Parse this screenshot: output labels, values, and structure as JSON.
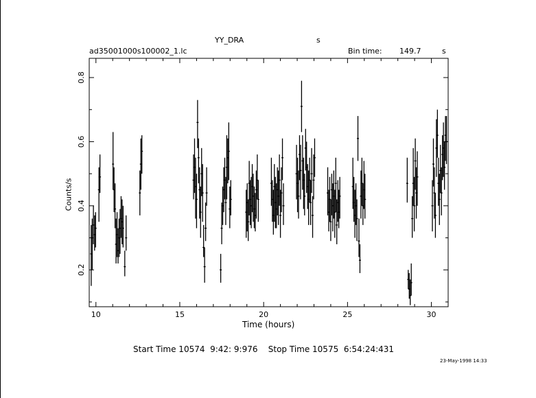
{
  "chart_data": {
    "type": "scatter",
    "title": "YY_DRA",
    "title_suffix": "s",
    "file_label": "ad35001000s100002_1.lc",
    "bin_time_label": "Bin time:",
    "bin_time_value": "149.7",
    "bin_time_unit": "s",
    "xlabel": "Time (hours)",
    "ylabel": "Counts/s",
    "xlim": [
      9.6,
      31.0
    ],
    "ylim": [
      0.085,
      0.86
    ],
    "x_ticks": [
      "10",
      "15",
      "20",
      "25",
      "30"
    ],
    "y_ticks": [
      "0.2",
      "0.4",
      "0.6",
      "0.8"
    ],
    "footer": "Start Time 10574  9:42: 9:976    Stop Time 10575  6:54:24:431",
    "timestamp": "23-May-1998 14:33",
    "series": [
      {
        "error_bars": true,
        "points": [
          {
            "x": 9.72,
            "y": 0.25,
            "lo": 0.15,
            "hi": 0.34
          },
          {
            "x": 9.78,
            "y": 0.3,
            "lo": 0.2,
            "hi": 0.36
          },
          {
            "x": 9.85,
            "y": 0.34,
            "lo": 0.28,
            "hi": 0.4
          },
          {
            "x": 9.92,
            "y": 0.31,
            "lo": 0.26,
            "hi": 0.37
          },
          {
            "x": 9.98,
            "y": 0.33,
            "lo": 0.27,
            "hi": 0.38
          },
          {
            "x": 10.18,
            "y": 0.45,
            "lo": 0.35,
            "hi": 0.52
          },
          {
            "x": 10.24,
            "y": 0.49,
            "lo": 0.44,
            "hi": 0.56
          },
          {
            "x": 11.02,
            "y": 0.53,
            "lo": 0.45,
            "hi": 0.63
          },
          {
            "x": 11.08,
            "y": 0.45,
            "lo": 0.38,
            "hi": 0.52
          },
          {
            "x": 11.14,
            "y": 0.39,
            "lo": 0.33,
            "hi": 0.47
          },
          {
            "x": 11.2,
            "y": 0.28,
            "lo": 0.22,
            "hi": 0.36
          },
          {
            "x": 11.26,
            "y": 0.31,
            "lo": 0.24,
            "hi": 0.38
          },
          {
            "x": 11.32,
            "y": 0.26,
            "lo": 0.22,
            "hi": 0.33
          },
          {
            "x": 11.38,
            "y": 0.3,
            "lo": 0.24,
            "hi": 0.36
          },
          {
            "x": 11.44,
            "y": 0.33,
            "lo": 0.25,
            "hi": 0.39
          },
          {
            "x": 11.5,
            "y": 0.36,
            "lo": 0.3,
            "hi": 0.43
          },
          {
            "x": 11.56,
            "y": 0.35,
            "lo": 0.28,
            "hi": 0.42
          },
          {
            "x": 11.62,
            "y": 0.33,
            "lo": 0.27,
            "hi": 0.4
          },
          {
            "x": 11.72,
            "y": 0.21,
            "lo": 0.18,
            "hi": 0.26
          },
          {
            "x": 11.8,
            "y": 0.3,
            "lo": 0.26,
            "hi": 0.37
          },
          {
            "x": 12.62,
            "y": 0.44,
            "lo": 0.37,
            "hi": 0.51
          },
          {
            "x": 12.68,
            "y": 0.53,
            "lo": 0.45,
            "hi": 0.61
          },
          {
            "x": 12.74,
            "y": 0.57,
            "lo": 0.5,
            "hi": 0.62
          },
          {
            "x": 15.82,
            "y": 0.48,
            "lo": 0.42,
            "hi": 0.56
          },
          {
            "x": 15.88,
            "y": 0.52,
            "lo": 0.44,
            "hi": 0.61
          },
          {
            "x": 15.94,
            "y": 0.46,
            "lo": 0.36,
            "hi": 0.55
          },
          {
            "x": 16.0,
            "y": 0.42,
            "lo": 0.33,
            "hi": 0.5
          },
          {
            "x": 16.06,
            "y": 0.66,
            "lo": 0.58,
            "hi": 0.73
          },
          {
            "x": 16.12,
            "y": 0.55,
            "lo": 0.47,
            "hi": 0.61
          },
          {
            "x": 16.18,
            "y": 0.45,
            "lo": 0.36,
            "hi": 0.52
          },
          {
            "x": 16.24,
            "y": 0.38,
            "lo": 0.3,
            "hi": 0.46
          },
          {
            "x": 16.3,
            "y": 0.5,
            "lo": 0.43,
            "hi": 0.58
          },
          {
            "x": 16.36,
            "y": 0.44,
            "lo": 0.35,
            "hi": 0.53
          },
          {
            "x": 16.42,
            "y": 0.27,
            "lo": 0.24,
            "hi": 0.34
          },
          {
            "x": 16.48,
            "y": 0.21,
            "lo": 0.16,
            "hi": 0.27
          },
          {
            "x": 16.54,
            "y": 0.33,
            "lo": 0.29,
            "hi": 0.41
          },
          {
            "x": 16.6,
            "y": 0.44,
            "lo": 0.4,
            "hi": 0.52
          },
          {
            "x": 17.44,
            "y": 0.2,
            "lo": 0.16,
            "hi": 0.25
          },
          {
            "x": 17.5,
            "y": 0.33,
            "lo": 0.28,
            "hi": 0.41
          },
          {
            "x": 17.56,
            "y": 0.4,
            "lo": 0.34,
            "hi": 0.46
          },
          {
            "x": 17.62,
            "y": 0.45,
            "lo": 0.38,
            "hi": 0.52
          },
          {
            "x": 17.68,
            "y": 0.48,
            "lo": 0.42,
            "hi": 0.55
          },
          {
            "x": 17.74,
            "y": 0.41,
            "lo": 0.34,
            "hi": 0.49
          },
          {
            "x": 17.8,
            "y": 0.52,
            "lo": 0.42,
            "hi": 0.62
          },
          {
            "x": 17.86,
            "y": 0.55,
            "lo": 0.47,
            "hi": 0.61
          },
          {
            "x": 17.92,
            "y": 0.57,
            "lo": 0.48,
            "hi": 0.66
          },
          {
            "x": 17.98,
            "y": 0.39,
            "lo": 0.33,
            "hi": 0.46
          },
          {
            "x": 18.04,
            "y": 0.42,
            "lo": 0.37,
            "hi": 0.48
          },
          {
            "x": 18.96,
            "y": 0.38,
            "lo": 0.3,
            "hi": 0.45
          },
          {
            "x": 19.02,
            "y": 0.41,
            "lo": 0.32,
            "hi": 0.47
          },
          {
            "x": 19.08,
            "y": 0.35,
            "lo": 0.29,
            "hi": 0.42
          },
          {
            "x": 19.14,
            "y": 0.47,
            "lo": 0.37,
            "hi": 0.54
          },
          {
            "x": 19.2,
            "y": 0.42,
            "lo": 0.34,
            "hi": 0.48
          },
          {
            "x": 19.26,
            "y": 0.4,
            "lo": 0.33,
            "hi": 0.49
          },
          {
            "x": 19.32,
            "y": 0.46,
            "lo": 0.38,
            "hi": 0.53
          },
          {
            "x": 19.38,
            "y": 0.43,
            "lo": 0.35,
            "hi": 0.5
          },
          {
            "x": 19.44,
            "y": 0.39,
            "lo": 0.33,
            "hi": 0.46
          },
          {
            "x": 19.5,
            "y": 0.37,
            "lo": 0.32,
            "hi": 0.44
          },
          {
            "x": 19.56,
            "y": 0.45,
            "lo": 0.36,
            "hi": 0.51
          },
          {
            "x": 19.62,
            "y": 0.48,
            "lo": 0.42,
            "hi": 0.56
          },
          {
            "x": 19.68,
            "y": 0.42,
            "lo": 0.35,
            "hi": 0.48
          },
          {
            "x": 20.46,
            "y": 0.47,
            "lo": 0.4,
            "hi": 0.55
          },
          {
            "x": 20.52,
            "y": 0.42,
            "lo": 0.35,
            "hi": 0.48
          },
          {
            "x": 20.58,
            "y": 0.37,
            "lo": 0.31,
            "hi": 0.45
          },
          {
            "x": 20.64,
            "y": 0.46,
            "lo": 0.35,
            "hi": 0.53
          },
          {
            "x": 20.7,
            "y": 0.41,
            "lo": 0.33,
            "hi": 0.49
          },
          {
            "x": 20.76,
            "y": 0.39,
            "lo": 0.33,
            "hi": 0.47
          },
          {
            "x": 20.82,
            "y": 0.45,
            "lo": 0.37,
            "hi": 0.52
          },
          {
            "x": 20.88,
            "y": 0.43,
            "lo": 0.34,
            "hi": 0.51
          },
          {
            "x": 20.94,
            "y": 0.48,
            "lo": 0.4,
            "hi": 0.56
          },
          {
            "x": 21.0,
            "y": 0.37,
            "lo": 0.3,
            "hi": 0.45
          },
          {
            "x": 21.06,
            "y": 0.44,
            "lo": 0.38,
            "hi": 0.52
          },
          {
            "x": 21.12,
            "y": 0.55,
            "lo": 0.48,
            "hi": 0.61
          },
          {
            "x": 21.18,
            "y": 0.4,
            "lo": 0.34,
            "hi": 0.47
          },
          {
            "x": 21.96,
            "y": 0.5,
            "lo": 0.42,
            "hi": 0.59
          },
          {
            "x": 22.02,
            "y": 0.47,
            "lo": 0.38,
            "hi": 0.55
          },
          {
            "x": 22.08,
            "y": 0.43,
            "lo": 0.36,
            "hi": 0.51
          },
          {
            "x": 22.14,
            "y": 0.56,
            "lo": 0.48,
            "hi": 0.62
          },
          {
            "x": 22.2,
            "y": 0.51,
            "lo": 0.42,
            "hi": 0.59
          },
          {
            "x": 22.26,
            "y": 0.71,
            "lo": 0.63,
            "hi": 0.79
          },
          {
            "x": 22.32,
            "y": 0.54,
            "lo": 0.45,
            "hi": 0.62
          },
          {
            "x": 22.38,
            "y": 0.48,
            "lo": 0.39,
            "hi": 0.55
          },
          {
            "x": 22.44,
            "y": 0.43,
            "lo": 0.37,
            "hi": 0.5
          },
          {
            "x": 22.5,
            "y": 0.58,
            "lo": 0.51,
            "hi": 0.64
          },
          {
            "x": 22.56,
            "y": 0.52,
            "lo": 0.44,
            "hi": 0.6
          },
          {
            "x": 22.62,
            "y": 0.46,
            "lo": 0.39,
            "hi": 0.53
          },
          {
            "x": 22.68,
            "y": 0.42,
            "lo": 0.34,
            "hi": 0.51
          },
          {
            "x": 22.74,
            "y": 0.48,
            "lo": 0.41,
            "hi": 0.55
          },
          {
            "x": 22.8,
            "y": 0.41,
            "lo": 0.34,
            "hi": 0.48
          },
          {
            "x": 22.86,
            "y": 0.5,
            "lo": 0.44,
            "hi": 0.58
          },
          {
            "x": 22.92,
            "y": 0.37,
            "lo": 0.3,
            "hi": 0.43
          },
          {
            "x": 22.98,
            "y": 0.48,
            "lo": 0.42,
            "hi": 0.56
          },
          {
            "x": 23.04,
            "y": 0.55,
            "lo": 0.49,
            "hi": 0.61
          },
          {
            "x": 23.82,
            "y": 0.44,
            "lo": 0.37,
            "hi": 0.52
          },
          {
            "x": 23.88,
            "y": 0.38,
            "lo": 0.32,
            "hi": 0.45
          },
          {
            "x": 23.94,
            "y": 0.42,
            "lo": 0.35,
            "hi": 0.49
          },
          {
            "x": 24.0,
            "y": 0.35,
            "lo": 0.29,
            "hi": 0.42
          },
          {
            "x": 24.06,
            "y": 0.45,
            "lo": 0.37,
            "hi": 0.5
          },
          {
            "x": 24.12,
            "y": 0.4,
            "lo": 0.32,
            "hi": 0.47
          },
          {
            "x": 24.18,
            "y": 0.43,
            "lo": 0.36,
            "hi": 0.51
          },
          {
            "x": 24.24,
            "y": 0.38,
            "lo": 0.3,
            "hi": 0.45
          },
          {
            "x": 24.3,
            "y": 0.47,
            "lo": 0.38,
            "hi": 0.55
          },
          {
            "x": 24.36,
            "y": 0.34,
            "lo": 0.28,
            "hi": 0.42
          },
          {
            "x": 24.42,
            "y": 0.41,
            "lo": 0.35,
            "hi": 0.48
          },
          {
            "x": 24.48,
            "y": 0.38,
            "lo": 0.33,
            "hi": 0.45
          },
          {
            "x": 24.54,
            "y": 0.43,
            "lo": 0.36,
            "hi": 0.49
          },
          {
            "x": 25.32,
            "y": 0.46,
            "lo": 0.39,
            "hi": 0.55
          },
          {
            "x": 25.38,
            "y": 0.41,
            "lo": 0.35,
            "hi": 0.49
          },
          {
            "x": 25.44,
            "y": 0.37,
            "lo": 0.3,
            "hi": 0.45
          },
          {
            "x": 25.5,
            "y": 0.4,
            "lo": 0.34,
            "hi": 0.47
          },
          {
            "x": 25.56,
            "y": 0.36,
            "lo": 0.29,
            "hi": 0.42
          },
          {
            "x": 25.62,
            "y": 0.61,
            "lo": 0.54,
            "hi": 0.68
          },
          {
            "x": 25.68,
            "y": 0.29,
            "lo": 0.24,
            "hi": 0.36
          },
          {
            "x": 25.74,
            "y": 0.23,
            "lo": 0.19,
            "hi": 0.28
          },
          {
            "x": 25.8,
            "y": 0.43,
            "lo": 0.36,
            "hi": 0.51
          },
          {
            "x": 25.86,
            "y": 0.47,
            "lo": 0.4,
            "hi": 0.55
          },
          {
            "x": 25.92,
            "y": 0.4,
            "lo": 0.34,
            "hi": 0.47
          },
          {
            "x": 25.98,
            "y": 0.45,
            "lo": 0.39,
            "hi": 0.54
          },
          {
            "x": 26.04,
            "y": 0.42,
            "lo": 0.36,
            "hi": 0.5
          },
          {
            "x": 28.56,
            "y": 0.47,
            "lo": 0.41,
            "hi": 0.55
          },
          {
            "x": 28.62,
            "y": 0.17,
            "lo": 0.14,
            "hi": 0.2
          },
          {
            "x": 28.68,
            "y": 0.14,
            "lo": 0.11,
            "hi": 0.19
          },
          {
            "x": 28.74,
            "y": 0.12,
            "lo": 0.09,
            "hi": 0.17
          },
          {
            "x": 28.8,
            "y": 0.16,
            "lo": 0.12,
            "hi": 0.22
          },
          {
            "x": 28.86,
            "y": 0.36,
            "lo": 0.3,
            "hi": 0.43
          },
          {
            "x": 28.92,
            "y": 0.47,
            "lo": 0.4,
            "hi": 0.58
          },
          {
            "x": 28.98,
            "y": 0.4,
            "lo": 0.32,
            "hi": 0.49
          },
          {
            "x": 29.04,
            "y": 0.54,
            "lo": 0.45,
            "hi": 0.61
          },
          {
            "x": 29.1,
            "y": 0.44,
            "lo": 0.36,
            "hi": 0.52
          },
          {
            "x": 29.16,
            "y": 0.49,
            "lo": 0.4,
            "hi": 0.57
          },
          {
            "x": 30.06,
            "y": 0.4,
            "lo": 0.32,
            "hi": 0.48
          },
          {
            "x": 30.12,
            "y": 0.53,
            "lo": 0.46,
            "hi": 0.61
          },
          {
            "x": 30.18,
            "y": 0.44,
            "lo": 0.36,
            "hi": 0.52
          },
          {
            "x": 30.24,
            "y": 0.37,
            "lo": 0.3,
            "hi": 0.44
          },
          {
            "x": 30.3,
            "y": 0.58,
            "lo": 0.49,
            "hi": 0.67
          },
          {
            "x": 30.36,
            "y": 0.62,
            "lo": 0.55,
            "hi": 0.7
          },
          {
            "x": 30.42,
            "y": 0.47,
            "lo": 0.4,
            "hi": 0.55
          },
          {
            "x": 30.48,
            "y": 0.42,
            "lo": 0.34,
            "hi": 0.5
          },
          {
            "x": 30.54,
            "y": 0.51,
            "lo": 0.44,
            "hi": 0.59
          },
          {
            "x": 30.6,
            "y": 0.44,
            "lo": 0.37,
            "hi": 0.52
          },
          {
            "x": 30.66,
            "y": 0.56,
            "lo": 0.48,
            "hi": 0.62
          },
          {
            "x": 30.72,
            "y": 0.58,
            "lo": 0.49,
            "hi": 0.66
          },
          {
            "x": 30.78,
            "y": 0.52,
            "lo": 0.45,
            "hi": 0.6
          },
          {
            "x": 30.84,
            "y": 0.62,
            "lo": 0.54,
            "hi": 0.68
          },
          {
            "x": 30.9,
            "y": 0.6,
            "lo": 0.53,
            "hi": 0.68
          }
        ]
      }
    ]
  }
}
